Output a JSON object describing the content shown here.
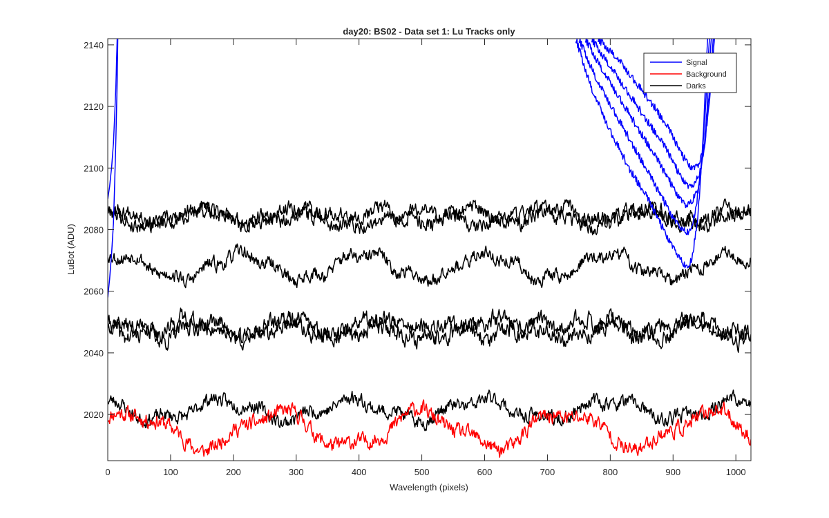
{
  "chart_data": {
    "type": "line",
    "title": "day20: BS02 - Data set 1: Lu Tracks only",
    "xlabel": "Wavelength (pixels)",
    "ylabel": "LuBot (ADU)",
    "xlim": [
      0,
      1024
    ],
    "ylim": [
      2005,
      2142
    ],
    "x_ticks": [
      0,
      100,
      200,
      300,
      400,
      500,
      600,
      700,
      800,
      900,
      1000
    ],
    "y_ticks": [
      2020,
      2040,
      2060,
      2080,
      2100,
      2120,
      2140
    ],
    "grid": false,
    "legend": {
      "position": "top-right",
      "entries": [
        "Signal",
        "Background",
        "Darks"
      ]
    },
    "colors": {
      "Signal": "#0000ff",
      "Background": "#ff0000",
      "Darks": "#000000",
      "axes": "#262626"
    },
    "series": [
      {
        "group": "Signal",
        "kind": "signal_left",
        "x": [
          0,
          3,
          6,
          9,
          11,
          13,
          15,
          16
        ],
        "y": [
          2058,
          2064,
          2072,
          2082,
          2095,
          2110,
          2128,
          2142
        ]
      },
      {
        "group": "Signal",
        "kind": "signal_left",
        "x": [
          0,
          3,
          6,
          9,
          11,
          13,
          14,
          15
        ],
        "y": [
          2090,
          2094,
          2100,
          2108,
          2117,
          2127,
          2135,
          2142
        ]
      },
      {
        "group": "Signal",
        "kind": "signal_valley",
        "x": [
          745,
          770,
          800,
          830,
          860,
          890,
          910,
          920,
          930,
          940,
          948,
          955
        ],
        "y": [
          2142,
          2126,
          2112,
          2100,
          2090,
          2078,
          2071,
          2068,
          2070,
          2085,
          2110,
          2142
        ]
      },
      {
        "group": "Signal",
        "kind": "signal_valley",
        "x": [
          750,
          780,
          810,
          840,
          870,
          900,
          915,
          925,
          935,
          945,
          952,
          958
        ],
        "y": [
          2142,
          2128,
          2117,
          2106,
          2095,
          2084,
          2080,
          2079,
          2085,
          2100,
          2120,
          2142
        ]
      },
      {
        "group": "Signal",
        "kind": "signal_valley",
        "x": [
          760,
          790,
          820,
          850,
          880,
          905,
          920,
          930,
          940,
          950,
          956,
          961
        ],
        "y": [
          2142,
          2131,
          2121,
          2111,
          2101,
          2092,
          2088,
          2089,
          2094,
          2108,
          2125,
          2142
        ]
      },
      {
        "group": "Signal",
        "kind": "signal_valley",
        "x": [
          770,
          800,
          830,
          860,
          890,
          910,
          925,
          935,
          945,
          953,
          959,
          964
        ],
        "y": [
          2142,
          2133,
          2124,
          2115,
          2106,
          2098,
          2094,
          2095,
          2100,
          2113,
          2128,
          2142
        ]
      },
      {
        "group": "Signal",
        "kind": "signal_valley",
        "x": [
          780,
          810,
          840,
          870,
          895,
          915,
          930,
          940,
          950,
          957,
          962,
          966
        ],
        "y": [
          2142,
          2136,
          2128,
          2120,
          2112,
          2104,
          2100,
          2101,
          2107,
          2120,
          2133,
          2142
        ]
      },
      {
        "group": "Background",
        "kind": "noise",
        "base": 2015,
        "waves": [
          [
            5.5,
            230,
            0.5
          ],
          [
            1.5,
            97,
            1.3
          ]
        ],
        "noise": 2.0,
        "seed": 11
      },
      {
        "group": "Darks",
        "kind": "noise",
        "base": 2021.5,
        "waves": [
          [
            3.0,
            205,
            2.2
          ],
          [
            1.2,
            75,
            0.4
          ]
        ],
        "noise": 1.8,
        "seed": 23
      },
      {
        "group": "Darks",
        "kind": "noise",
        "base": 2047.5,
        "waves": [
          [
            2.5,
            130,
            0.3
          ],
          [
            1.2,
            57,
            1.0
          ]
        ],
        "noise": 2.2,
        "seed": 37
      },
      {
        "group": "Darks",
        "kind": "noise",
        "base": 2048.0,
        "waves": [
          [
            2.5,
            160,
            2.8
          ],
          [
            1.2,
            63,
            2.0
          ]
        ],
        "noise": 2.2,
        "seed": 41
      },
      {
        "group": "Darks",
        "kind": "noise",
        "base": 2068.0,
        "waves": [
          [
            3.8,
            195,
            1.0
          ],
          [
            1.2,
            55,
            2.5
          ]
        ],
        "noise": 1.8,
        "seed": 53
      },
      {
        "group": "Darks",
        "kind": "noise",
        "base": 2084.5,
        "waves": [
          [
            2.2,
            140,
            0.9
          ],
          [
            1.0,
            49,
            1.8
          ]
        ],
        "noise": 2.0,
        "seed": 67
      },
      {
        "group": "Darks",
        "kind": "noise",
        "base": 2084.0,
        "waves": [
          [
            2.4,
            175,
            2.4
          ],
          [
            1.0,
            61,
            0.6
          ]
        ],
        "noise": 2.0,
        "seed": 79
      }
    ]
  }
}
